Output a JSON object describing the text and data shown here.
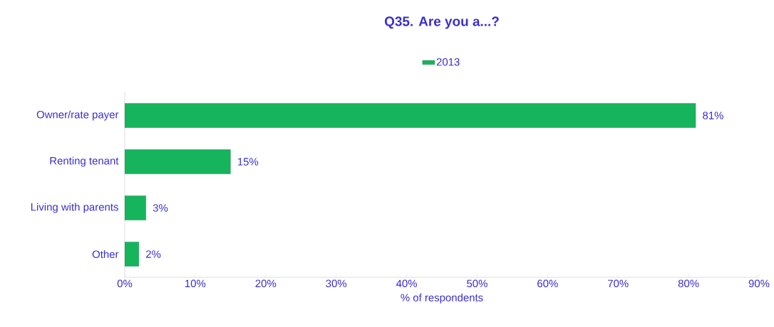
{
  "chart_data": {
    "type": "bar",
    "orientation": "horizontal",
    "title": "Q35. Are you a...?",
    "xlabel": "% of respondents",
    "categories": [
      "Owner/rate payer",
      "Renting tenant",
      "Living with parents",
      "Other"
    ],
    "series": [
      {
        "name": "2013",
        "color": "#16b45c",
        "values": [
          81,
          15,
          3,
          2
        ],
        "value_labels": [
          "81%",
          "15%",
          "3%",
          "2%"
        ]
      }
    ],
    "xlim": [
      0,
      90
    ],
    "xticks": [
      {
        "value": 0,
        "label": "0%"
      },
      {
        "value": 10,
        "label": "10%"
      },
      {
        "value": 20,
        "label": "20%"
      },
      {
        "value": 30,
        "label": "30%"
      },
      {
        "value": 40,
        "label": "40%"
      },
      {
        "value": 50,
        "label": "50%"
      },
      {
        "value": 60,
        "label": "60%"
      },
      {
        "value": 70,
        "label": "70%"
      },
      {
        "value": 80,
        "label": "80%"
      },
      {
        "value": 90,
        "label": "90%"
      }
    ],
    "legend": "top"
  }
}
